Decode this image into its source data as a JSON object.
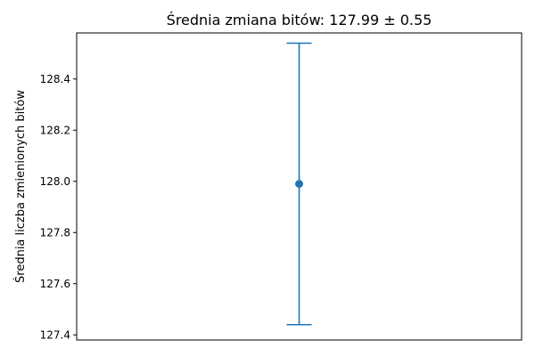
{
  "chart_data": {
    "type": "scatter",
    "title": "Średnia zmiana bitów: 127.99 ± 0.55",
    "xlabel": "",
    "ylabel": "Średnia liczba zmienionych bitów",
    "ylim": [
      127.38,
      128.58
    ],
    "yticks": [
      127.4,
      127.6,
      127.8,
      128.0,
      128.2,
      128.4
    ],
    "ytick_labels": [
      "127.4",
      "127.6",
      "127.8",
      "128.0",
      "128.2",
      "128.4"
    ],
    "x_ticks_visible": false,
    "grid": false,
    "series": [
      {
        "points": [
          {
            "x": 0,
            "y": 127.99,
            "error": 0.55
          }
        ],
        "color": "#1f77b4",
        "marker": "circle",
        "error_bars": true
      }
    ]
  }
}
